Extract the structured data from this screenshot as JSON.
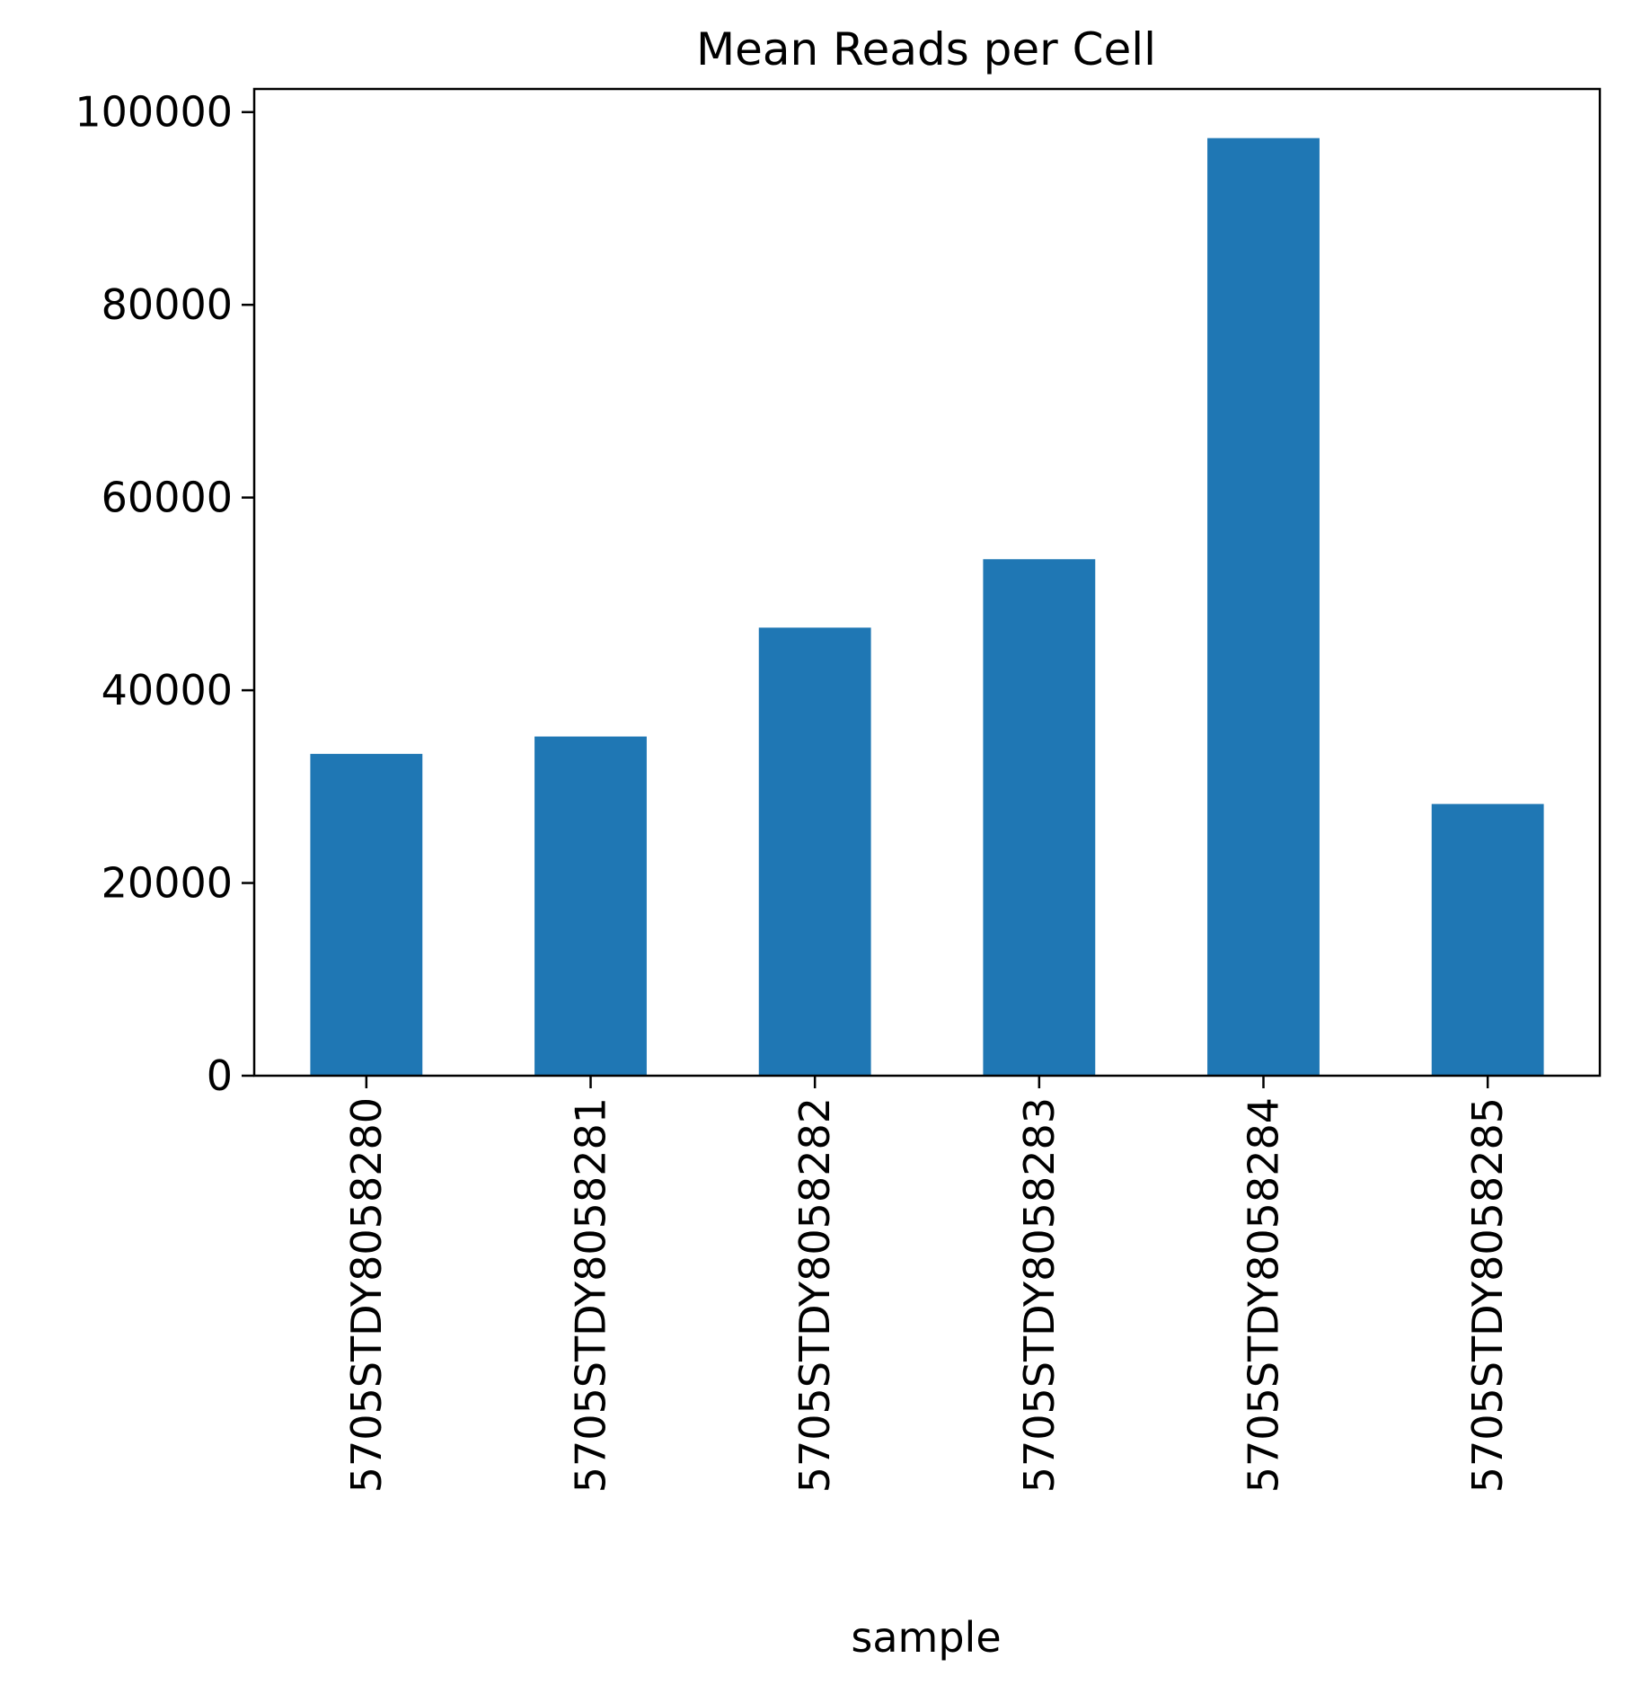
{
  "chart_data": {
    "type": "bar",
    "title": "Mean Reads per Cell",
    "xlabel": "sample",
    "ylabel": "",
    "categories": [
      "5705STDY8058280",
      "5705STDY8058281",
      "5705STDY8058282",
      "5705STDY8058283",
      "5705STDY8058284",
      "5705STDY8058285"
    ],
    "values": [
      33400,
      35200,
      46500,
      53600,
      97300,
      28200
    ],
    "ylim": [
      0,
      102400
    ],
    "yticks": [
      0,
      20000,
      40000,
      60000,
      80000,
      100000
    ],
    "ytick_labels": [
      "0",
      "20000",
      "40000",
      "60000",
      "80000",
      "100000"
    ],
    "bar_color": "#1f77b4",
    "grid": false,
    "legend": "none"
  }
}
